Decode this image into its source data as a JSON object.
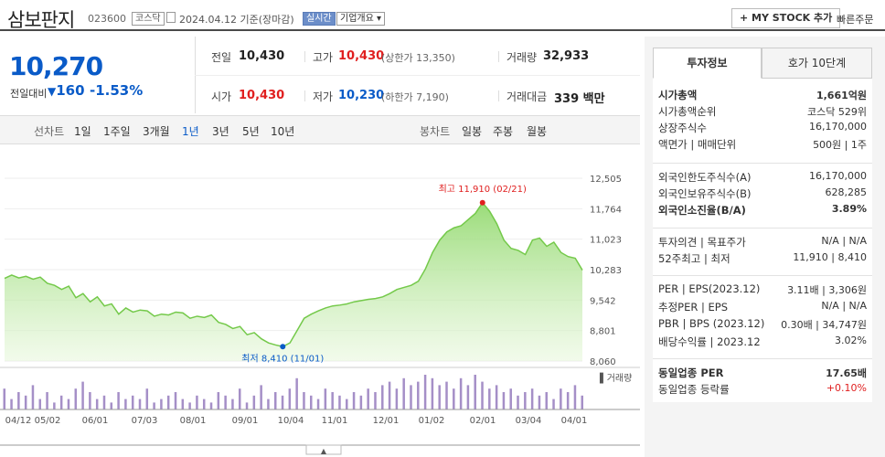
{
  "header": {
    "title": "삼보판지",
    "code": "023600",
    "market": "코스닥",
    "date": "2024.04.12",
    "basis": "기준(장마감)",
    "realtime": "실시간",
    "company_info": "기업개요",
    "mystock": "+ MY STOCK 추가",
    "quick_order": "빠른주문"
  },
  "quote": {
    "price": "10,270",
    "change_label": "전일대비",
    "change": "160",
    "change_pct": "-1.53%",
    "prev_label": "전일",
    "prev": "10,430",
    "high_label": "고가",
    "high": "10,430",
    "upper_label": "(상한가 13,350)",
    "volume_label": "거래량",
    "volume": "32,933",
    "open_label": "시가",
    "open": "10,430",
    "low_label": "저가",
    "low": "10,230",
    "lower_label": "(하한가 7,190)",
    "amount_label": "거래대금",
    "amount": "339 백만"
  },
  "chart_bar": {
    "line_label": "선차트",
    "line_periods": [
      "1일",
      "1주일",
      "3개월",
      "1년",
      "3년",
      "5년",
      "10년"
    ],
    "selected": "1년",
    "candle_label": "봉차트",
    "candle_periods": [
      "일봉",
      "주봉",
      "월봉"
    ]
  },
  "chart_data": {
    "type": "area",
    "ylim": [
      8060,
      12505
    ],
    "yticks": [
      "12,505",
      "11,764",
      "11,023",
      "10,283",
      "9,542",
      "8,801",
      "8,060"
    ],
    "xticks": [
      "04/12",
      "05/02",
      "06/01",
      "07/03",
      "08/01",
      "09/01",
      "10/04",
      "11/01",
      "12/01",
      "01/02",
      "02/01",
      "03/04",
      "04/01"
    ],
    "high_label": "최고 11,910 (02/21)",
    "low_label": "최저 8,410 (11/01)",
    "high": 11910,
    "low": 8410,
    "volume_legend": "거래량",
    "values": [
      10070,
      10150,
      10080,
      10120,
      10050,
      10100,
      9950,
      9900,
      9800,
      9880,
      9600,
      9700,
      9500,
      9620,
      9400,
      9450,
      9200,
      9350,
      9250,
      9300,
      9280,
      9150,
      9200,
      9180,
      9250,
      9230,
      9100,
      9150,
      9120,
      9180,
      9000,
      8950,
      8850,
      8900,
      8700,
      8750,
      8600,
      8500,
      8450,
      8410,
      8500,
      8800,
      9100,
      9200,
      9280,
      9350,
      9400,
      9420,
      9450,
      9500,
      9530,
      9560,
      9580,
      9620,
      9700,
      9800,
      9850,
      9900,
      10000,
      10300,
      10700,
      11000,
      11200,
      11300,
      11350,
      11500,
      11650,
      11910,
      11700,
      11400,
      11000,
      10800,
      10750,
      10650,
      11000,
      11050,
      10850,
      10950,
      10700,
      10600,
      10560,
      10270
    ],
    "volumes": [
      0.6,
      0.3,
      0.5,
      0.4,
      0.7,
      0.3,
      0.5,
      0.2,
      0.4,
      0.3,
      0.6,
      0.8,
      0.5,
      0.3,
      0.4,
      0.2,
      0.5,
      0.3,
      0.4,
      0.3,
      0.6,
      0.2,
      0.3,
      0.4,
      0.5,
      0.3,
      0.2,
      0.4,
      0.3,
      0.2,
      0.5,
      0.4,
      0.3,
      0.6,
      0.2,
      0.4,
      0.7,
      0.3,
      0.5,
      0.4,
      0.6,
      0.9,
      0.5,
      0.4,
      0.3,
      0.6,
      0.5,
      0.4,
      0.3,
      0.5,
      0.4,
      0.6,
      0.5,
      0.7,
      0.8,
      0.6,
      0.9,
      0.7,
      0.8,
      1.0,
      0.9,
      0.7,
      0.8,
      0.6,
      0.9,
      0.7,
      1.0,
      0.8,
      0.6,
      0.7,
      0.5,
      0.6,
      0.4,
      0.5,
      0.6,
      0.4,
      0.5,
      0.3,
      0.6,
      0.5,
      0.7,
      0.4
    ]
  },
  "panel": {
    "tab1": "투자정보",
    "tab2": "호가 10단계",
    "g1": [
      {
        "label": "시가총액",
        "value": "1,661억원",
        "bold": true
      },
      {
        "label": "시가총액순위",
        "value": "코스닥 529위"
      },
      {
        "label": "상장주식수",
        "value": "16,170,000"
      },
      {
        "label": "액면가 | 매매단위",
        "value": "500원 | 1주"
      }
    ],
    "g2": [
      {
        "label": "외국인한도주식수(A)",
        "value": "16,170,000"
      },
      {
        "label": "외국인보유주식수(B)",
        "value": "628,285"
      },
      {
        "label": "외국인소진율(B/A)",
        "value": "3.89%",
        "bold": true
      }
    ],
    "g3": [
      {
        "label": "투자의견 | 목표주가",
        "value": "N/A | N/A"
      },
      {
        "label": "52주최고 | 최저",
        "value": "11,910 | 8,410"
      }
    ],
    "g4": [
      {
        "label": "PER | EPS(2023.12)",
        "value": "3.11배 | 3,306원"
      },
      {
        "label": "추정PER | EPS",
        "value": "N/A | N/A"
      },
      {
        "label": "PBR | BPS (2023.12)",
        "value": "0.30배 | 34,747원"
      },
      {
        "label": "배당수익률 | 2023.12",
        "value": "3.02%"
      }
    ],
    "g5": [
      {
        "label": "동일업종 PER",
        "value": "17.65배",
        "bold": true
      },
      {
        "label": "동일업종 등락률",
        "value": "+0.10%",
        "red": true
      }
    ]
  }
}
